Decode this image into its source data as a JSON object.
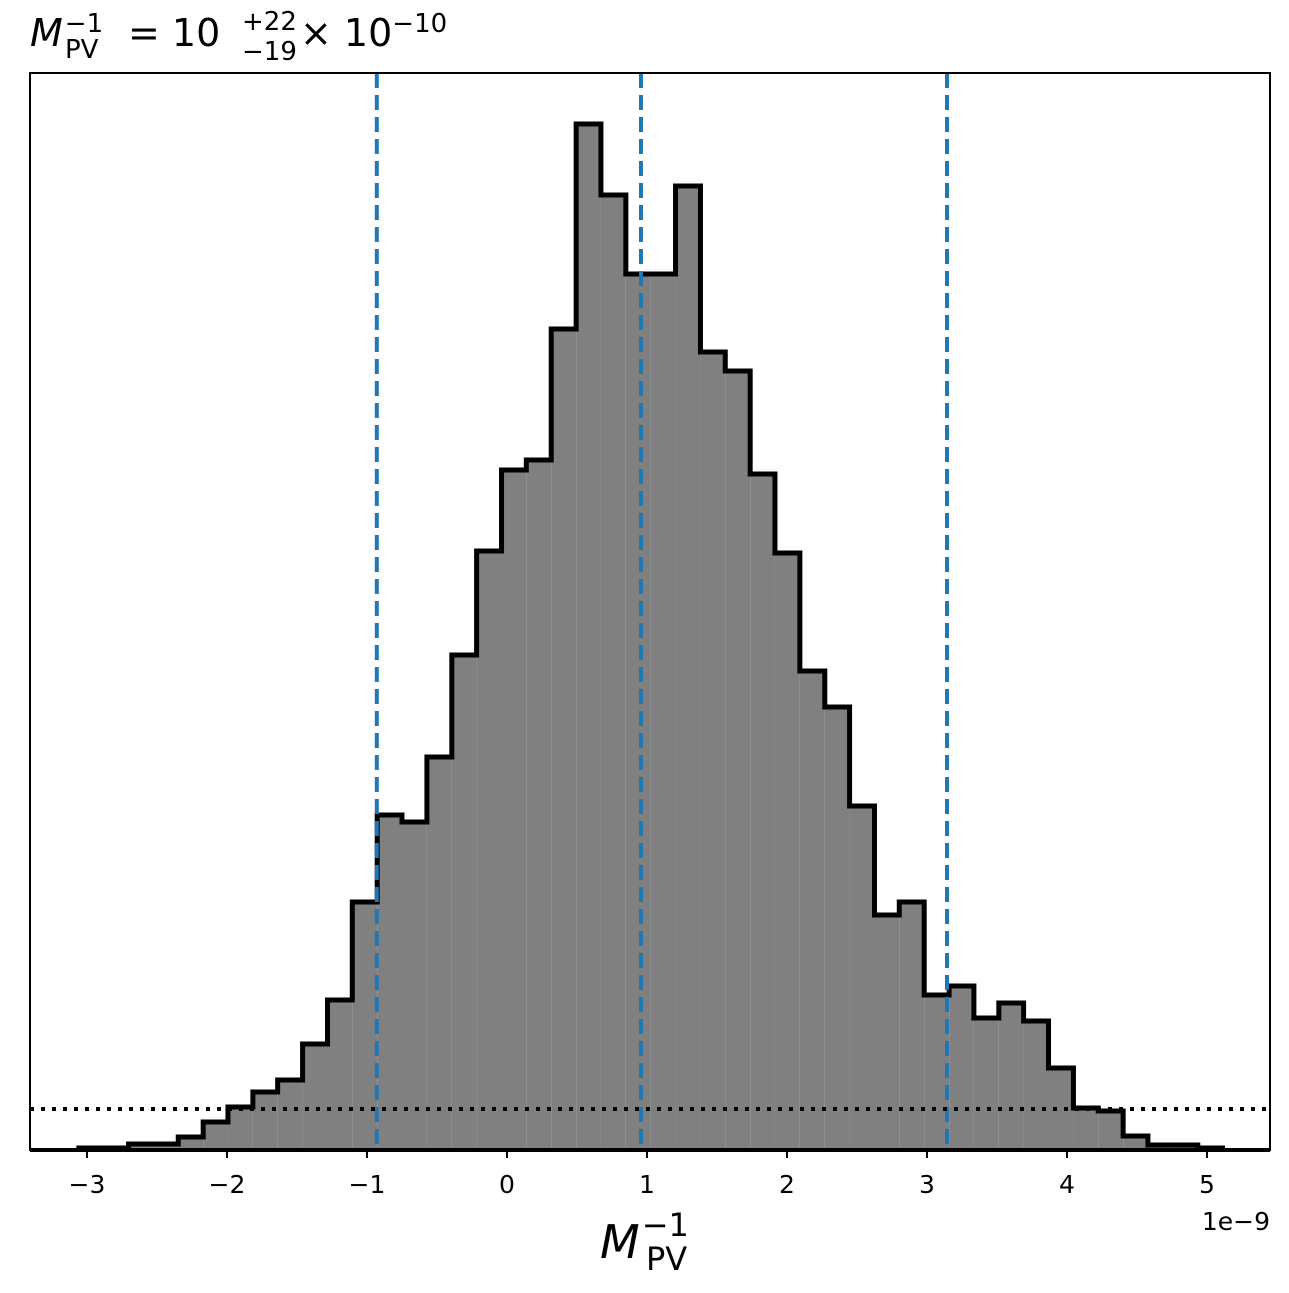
{
  "chart_data": {
    "type": "histogram",
    "title": {
      "symbol": "M",
      "sub": "PV",
      "sup": "−1",
      "eq": "= 10",
      "plus": "+22",
      "minus": "−19",
      "times": "× 10",
      "exp": "−10"
    },
    "xlabel": {
      "symbol": "M",
      "sub": "PV",
      "sup": "−1"
    },
    "x_offset_label": "1e−9",
    "bins": [
      -3.058,
      -2.881,
      -2.703,
      -2.526,
      -2.348,
      -2.17,
      -1.993,
      -1.815,
      -1.638,
      -1.46,
      -1.282,
      -1.105,
      -0.927,
      -0.75,
      -0.572,
      -0.394,
      -0.217,
      -0.039,
      0.138,
      0.316,
      0.494,
      0.671,
      0.849,
      1.026,
      1.204,
      1.382,
      1.559,
      1.737,
      1.914,
      2.092,
      2.27,
      2.447,
      2.625,
      2.802,
      2.98,
      3.158,
      3.335,
      3.513,
      3.69,
      3.868,
      4.046,
      4.223,
      4.401,
      4.578,
      4.756,
      4.934,
      5.111
    ],
    "values": [
      0.5,
      0.5,
      1.5,
      1.5,
      3.25,
      7,
      10.75,
      14.5,
      17.5,
      26.5,
      37.5,
      62,
      83.75,
      82,
      98.25,
      123.75,
      149.75,
      170,
      172.5,
      205.25,
      256.5,
      238.75,
      219,
      219,
      241,
      199.5,
      194.75,
      169,
      149.25,
      119.75,
      110.75,
      86,
      58.75,
      62,
      38.75,
      41,
      33,
      36.75,
      32.25,
      20.5,
      10.5,
      9.75,
      3.5,
      1.25,
      1.25,
      0.5
    ],
    "color": "#808080",
    "edge_color": "#000000",
    "xlim": [
      -3.407,
      5.45
    ],
    "ylim": [
      0,
      269.25
    ],
    "xticks": [
      {
        "value": -3,
        "label": "−3"
      },
      {
        "value": -2,
        "label": "−2"
      },
      {
        "value": -1,
        "label": "−1"
      },
      0,
      1,
      2,
      3,
      4,
      5
    ],
    "vlines": [
      -0.93,
      0.957,
      3.143
    ],
    "vline_color": "#1f77b4",
    "hline": 10.25,
    "hline_color": "#000000"
  }
}
